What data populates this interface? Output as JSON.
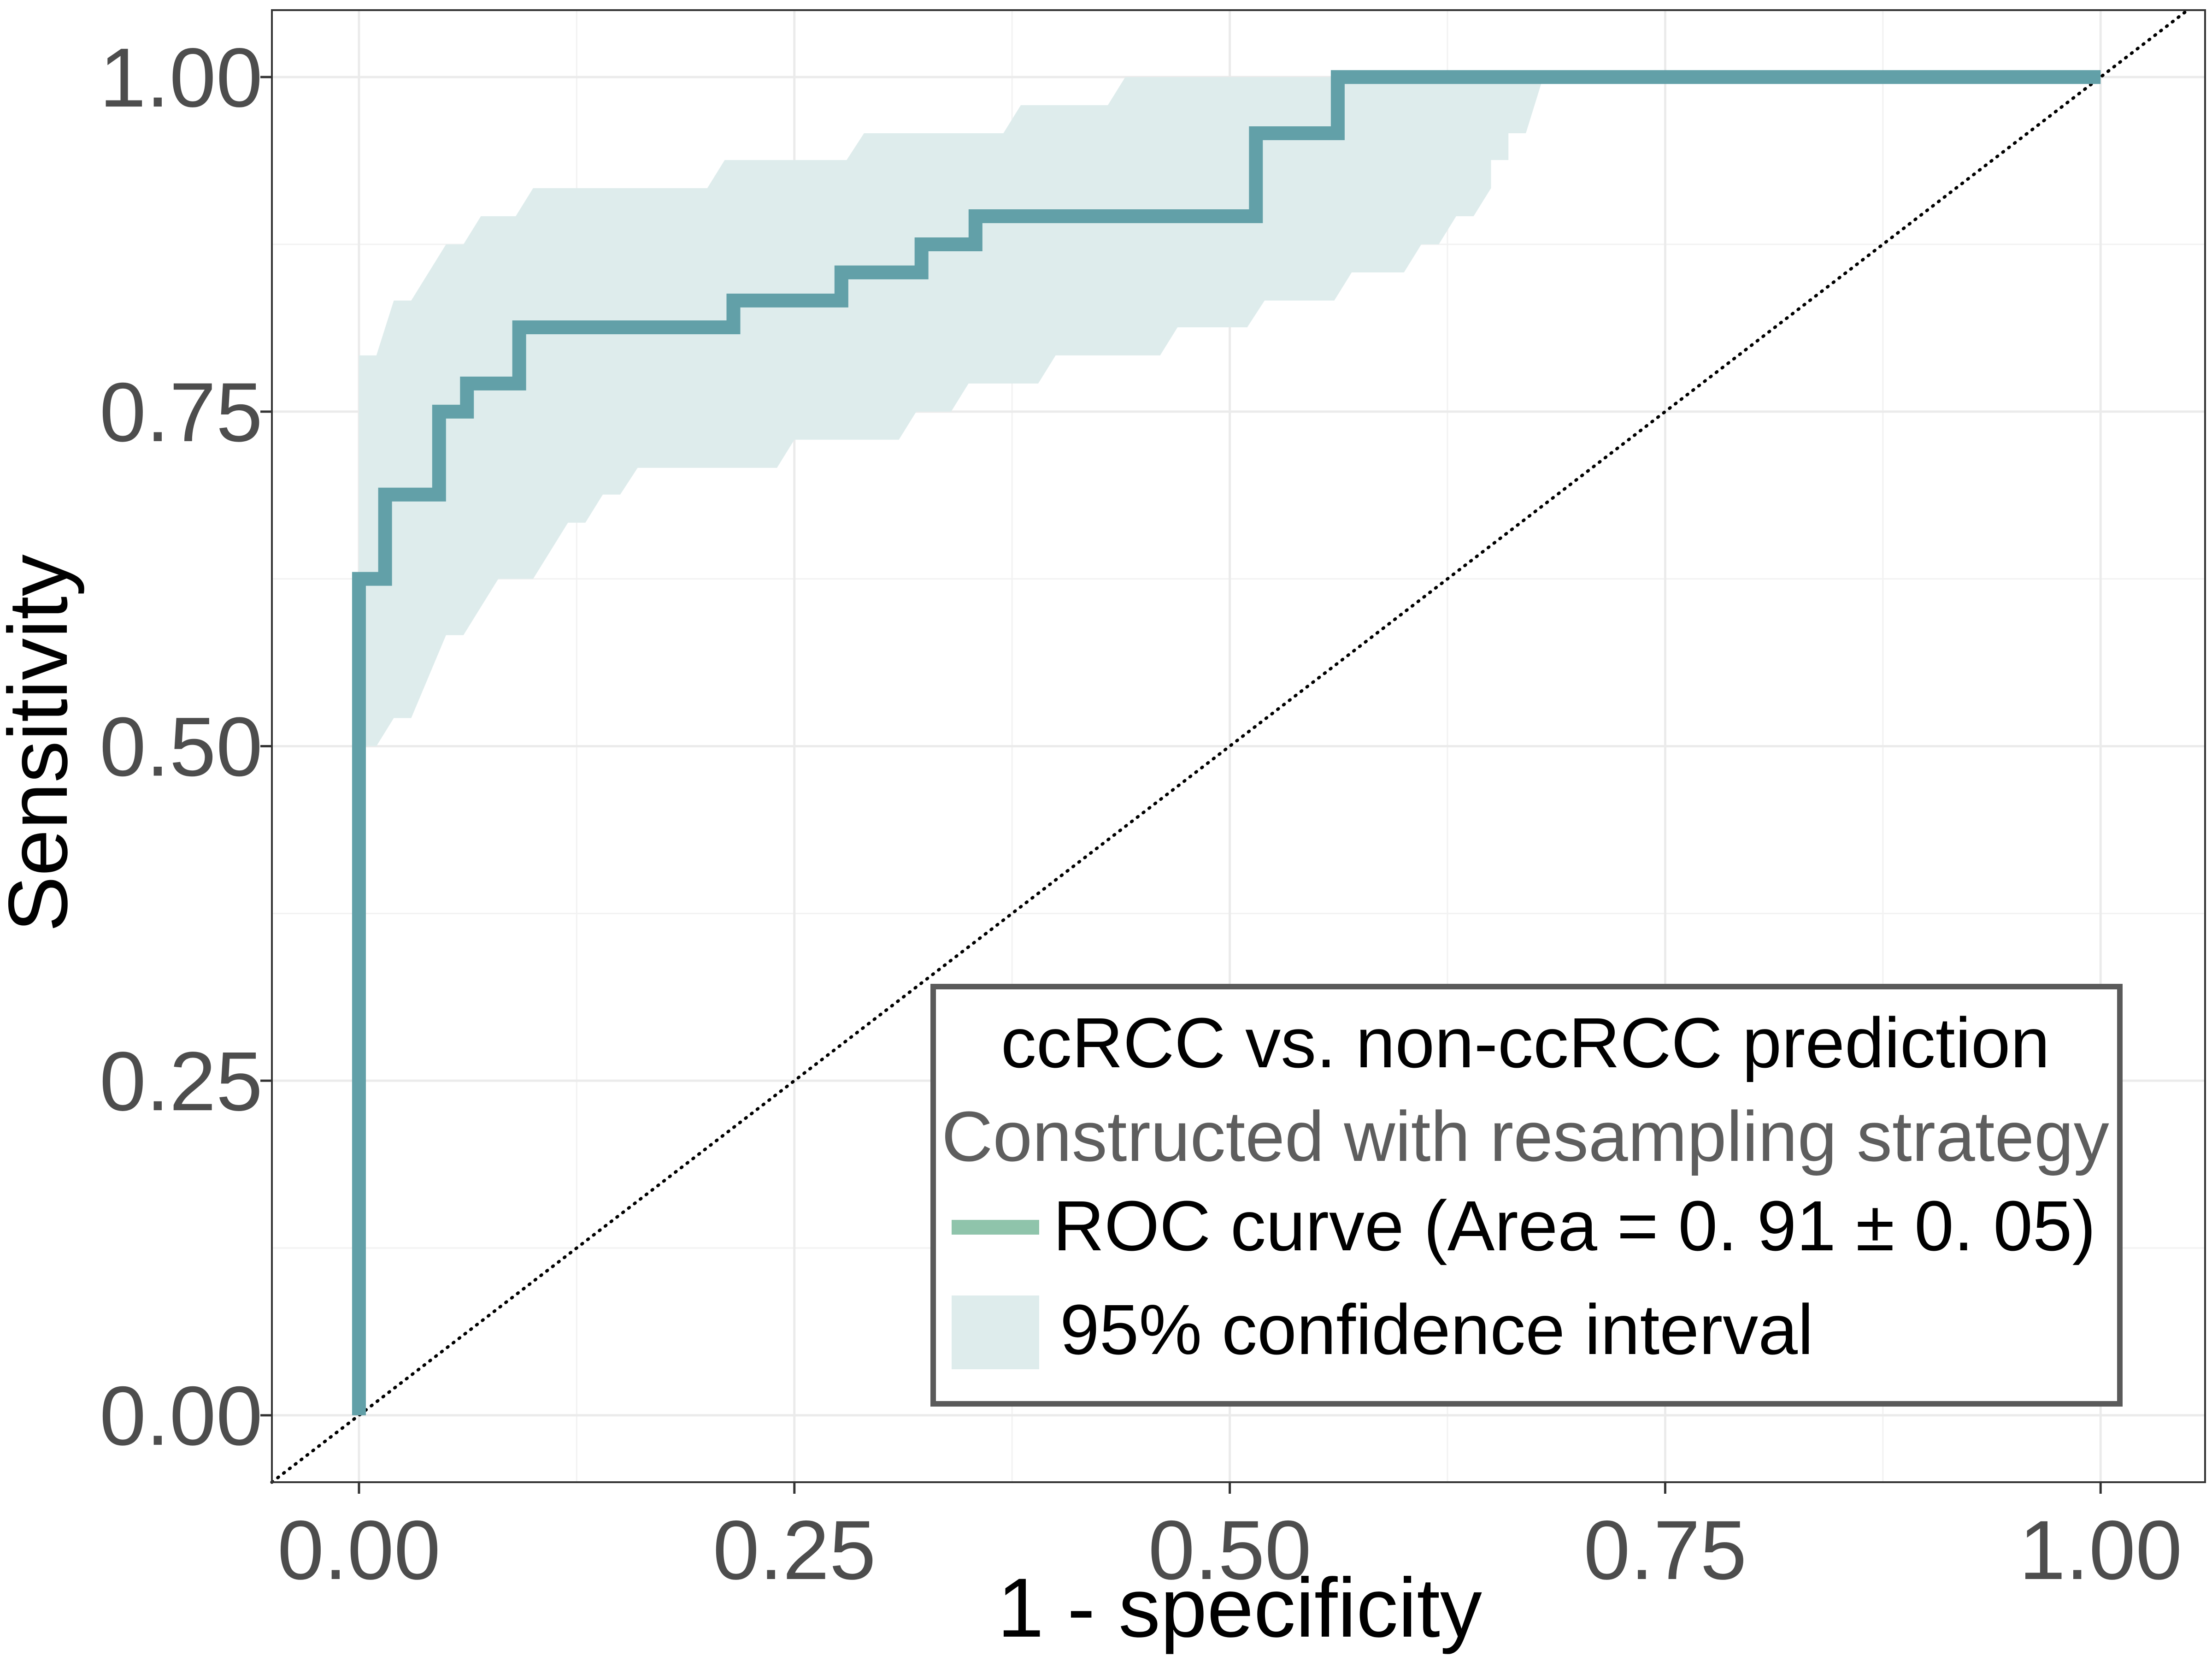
{
  "chart_data": {
    "type": "line",
    "xlabel": "1 - specificity",
    "ylabel": "Sensitivity",
    "xlim": [
      -0.05,
      1.06
    ],
    "ylim": [
      -0.05,
      1.05
    ],
    "x_ticks": [
      0,
      0.25,
      0.5,
      0.75,
      1
    ],
    "y_ticks": [
      0,
      0.25,
      0.5,
      0.75,
      1
    ],
    "x_tick_labels": [
      "0.00",
      "0.25",
      "0.50",
      "0.75",
      "1.00"
    ],
    "y_tick_labels": [
      "0.00",
      "0.25",
      "0.50",
      "0.75",
      "1.00"
    ],
    "grid": true,
    "legend": {
      "placement": "bottom-right",
      "title": "ccRCC vs. non-ccRCC prediction",
      "subtitle": "Constructed with resampling strategy",
      "items": [
        {
          "label": "ROC curve (Area = 0. 91 ± 0. 05)",
          "kind": "line",
          "color": "#8fc4ab"
        },
        {
          "label": "95% confidence interval",
          "kind": "fill",
          "color": "#deecec"
        }
      ]
    },
    "series": [
      {
        "type": "step-line",
        "color": "#62a0a8",
        "points": [
          [
            0.0,
            0.0
          ],
          [
            0.0,
            0.625
          ],
          [
            0.015,
            0.625
          ],
          [
            0.015,
            0.688
          ],
          [
            0.046,
            0.688
          ],
          [
            0.046,
            0.75
          ],
          [
            0.062,
            0.75
          ],
          [
            0.062,
            0.771
          ],
          [
            0.092,
            0.771
          ],
          [
            0.092,
            0.813
          ],
          [
            0.215,
            0.813
          ],
          [
            0.215,
            0.833
          ],
          [
            0.277,
            0.833
          ],
          [
            0.277,
            0.854
          ],
          [
            0.323,
            0.854
          ],
          [
            0.323,
            0.875
          ],
          [
            0.354,
            0.875
          ],
          [
            0.354,
            0.896
          ],
          [
            0.515,
            0.896
          ],
          [
            0.515,
            0.958
          ],
          [
            0.562,
            0.958
          ],
          [
            0.562,
            1.0
          ],
          [
            1.0,
            1.0
          ]
        ]
      }
    ],
    "confidence_band": {
      "color": "#deecec",
      "upper": [
        [
          0.0,
          0.792
        ],
        [
          0.01,
          0.792
        ],
        [
          0.02,
          0.833
        ],
        [
          0.03,
          0.833
        ],
        [
          0.05,
          0.875
        ],
        [
          0.06,
          0.875
        ],
        [
          0.07,
          0.896
        ],
        [
          0.09,
          0.896
        ],
        [
          0.1,
          0.917
        ],
        [
          0.2,
          0.917
        ],
        [
          0.21,
          0.938
        ],
        [
          0.28,
          0.938
        ],
        [
          0.29,
          0.958
        ],
        [
          0.37,
          0.958
        ],
        [
          0.38,
          0.979
        ],
        [
          0.43,
          0.979
        ],
        [
          0.44,
          1.0
        ],
        [
          0.68,
          1.0
        ]
      ],
      "lower": [
        [
          0.0,
          0.5
        ],
        [
          0.01,
          0.5
        ],
        [
          0.02,
          0.521
        ],
        [
          0.03,
          0.521
        ],
        [
          0.05,
          0.583
        ],
        [
          0.06,
          0.583
        ],
        [
          0.08,
          0.625
        ],
        [
          0.1,
          0.625
        ],
        [
          0.11,
          0.646
        ],
        [
          0.12,
          0.667
        ],
        [
          0.13,
          0.667
        ],
        [
          0.14,
          0.688
        ],
        [
          0.15,
          0.688
        ],
        [
          0.16,
          0.708
        ],
        [
          0.24,
          0.708
        ],
        [
          0.25,
          0.729
        ],
        [
          0.31,
          0.729
        ],
        [
          0.32,
          0.75
        ],
        [
          0.34,
          0.75
        ],
        [
          0.35,
          0.771
        ],
        [
          0.39,
          0.771
        ],
        [
          0.4,
          0.792
        ],
        [
          0.46,
          0.792
        ],
        [
          0.47,
          0.813
        ],
        [
          0.51,
          0.813
        ],
        [
          0.52,
          0.833
        ],
        [
          0.56,
          0.833
        ],
        [
          0.57,
          0.854
        ],
        [
          0.6,
          0.854
        ],
        [
          0.61,
          0.875
        ],
        [
          0.62,
          0.875
        ],
        [
          0.63,
          0.896
        ],
        [
          0.64,
          0.896
        ],
        [
          0.65,
          0.917
        ],
        [
          0.65,
          0.938
        ],
        [
          0.66,
          0.938
        ],
        [
          0.66,
          0.958
        ],
        [
          0.67,
          0.958
        ],
        [
          0.68,
          1.0
        ]
      ]
    },
    "reference_line": {
      "style": "dotted",
      "color": "#000000",
      "from": [
        -0.05,
        -0.05
      ],
      "to": [
        1.05,
        1.05
      ]
    }
  }
}
